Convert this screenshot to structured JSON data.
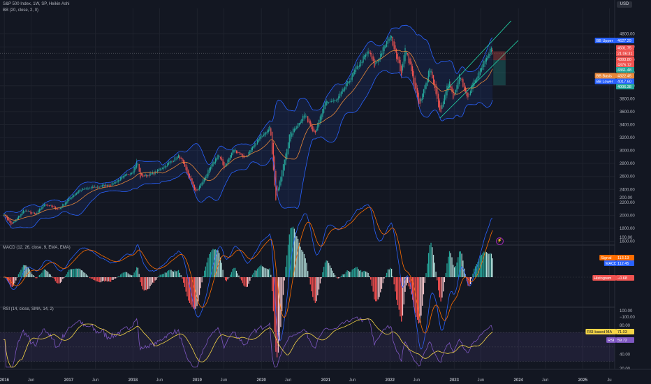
{
  "header": {
    "symbol": "S&P 500 Index, 1W, SP, Heikin Ashi",
    "bb_legend": "BB (20, close, 2, 0)",
    "currency": "USD"
  },
  "macd_legend": "MACD (12, 26, close, 9, EMA, EMA)",
  "rsi_legend": "RSI (14, close, SMA, 14, 2)",
  "colors": {
    "background": "#131722",
    "up": "#26a69a",
    "down": "#ef5350",
    "bb_basis": "#e8883a",
    "bb_band": "#2962ff",
    "channel": "#22d3a6",
    "macd_line": "#2962ff",
    "signal_line": "#ff6d00",
    "rsi_line": "#7e57c2",
    "rsi_ma": "#f5d547"
  },
  "price_labels": [
    {
      "name": "bb-upper",
      "tag": "BB Upper",
      "value": "4627.29",
      "bg": "#2962ff"
    },
    {
      "name": "last-price",
      "tag": "",
      "value": "4501.75",
      "bg": "#ef5350"
    },
    {
      "name": "countdown",
      "tag": "",
      "value": "21:06:31",
      "bg": "#ef5350"
    },
    {
      "name": "hl-high",
      "tag": "",
      "value": "4393.80",
      "bg": "#ef5350"
    },
    {
      "name": "hl-open",
      "tag": "",
      "value": "4376.12",
      "bg": "#ef5350"
    },
    {
      "name": "hl-low",
      "tag": "",
      "value": "4361.48",
      "bg": "#26a69a"
    },
    {
      "name": "bb-basis",
      "tag": "BB Basis",
      "value": "4322.45",
      "bg": "#e8883a"
    },
    {
      "name": "bb-lower",
      "tag": "BB Lower",
      "value": "4017.60",
      "bg": "#2962ff"
    },
    {
      "name": "hl-close",
      "tag": "",
      "value": "4006.38",
      "bg": "#26a69a"
    }
  ],
  "macd_labels": [
    {
      "name": "signal",
      "tag": "Signal",
      "value": "113.13",
      "bg": "#ff6d00"
    },
    {
      "name": "macd",
      "tag": "MACD",
      "value": "112.45",
      "bg": "#2962ff"
    },
    {
      "name": "histogram",
      "tag": "Histogram",
      "value": "−0.68",
      "bg": "#ef5350"
    }
  ],
  "rsi_labels": [
    {
      "name": "rsi-ma",
      "tag": "RSI-based MA",
      "value": "71.03",
      "bg": "#f5d547"
    },
    {
      "name": "rsi",
      "tag": "RSI",
      "value": "59.72",
      "bg": "#7e57c2"
    }
  ],
  "chart_data": [
    {
      "type": "candlestick",
      "title": "S&P 500 Index, 1W, SP, Heikin Ashi",
      "ylim": [
        1500,
        5000
      ],
      "y_ticks": [
        "4800.00",
        "4600.00",
        "4400.00",
        "4200.00",
        "4000.00",
        "3800.00",
        "3600.00",
        "3400.00",
        "3200.00",
        "3000.00",
        "2800.00",
        "2600.00",
        "2400.00",
        "2200.00",
        "2000.00",
        "1800.00",
        "1600.00"
      ],
      "price_anchors": [
        [
          "2015-12-28",
          2020
        ],
        [
          "2016-02-11",
          1850
        ],
        [
          "2016-04-20",
          2080
        ],
        [
          "2016-06-27",
          2010
        ],
        [
          "2016-08-15",
          2180
        ],
        [
          "2016-11-04",
          2090
        ],
        [
          "2016-12-30",
          2250
        ],
        [
          "2017-03-01",
          2390
        ],
        [
          "2017-06-15",
          2440
        ],
        [
          "2017-09-01",
          2480
        ],
        [
          "2017-12-29",
          2680
        ],
        [
          "2018-01-26",
          2850
        ],
        [
          "2018-02-09",
          2590
        ],
        [
          "2018-05-01",
          2650
        ],
        [
          "2018-09-20",
          2920
        ],
        [
          "2018-12-24",
          2350
        ],
        [
          "2019-04-30",
          2940
        ],
        [
          "2019-06-03",
          2740
        ],
        [
          "2019-07-26",
          3020
        ],
        [
          "2019-10-02",
          2890
        ],
        [
          "2019-12-31",
          3230
        ],
        [
          "2020-02-19",
          3380
        ],
        [
          "2020-03-23",
          2230
        ],
        [
          "2020-06-08",
          3230
        ],
        [
          "2020-09-02",
          3560
        ],
        [
          "2020-10-30",
          3270
        ],
        [
          "2020-12-31",
          3750
        ],
        [
          "2021-03-04",
          3770
        ],
        [
          "2021-06-30",
          4300
        ],
        [
          "2021-09-02",
          4540
        ],
        [
          "2021-10-04",
          4300
        ],
        [
          "2021-12-31",
          4770
        ],
        [
          "2022-01-03",
          4796
        ],
        [
          "2022-03-08",
          4170
        ],
        [
          "2022-03-29",
          4630
        ],
        [
          "2022-06-16",
          3670
        ],
        [
          "2022-08-16",
          4300
        ],
        [
          "2022-10-12",
          3570
        ],
        [
          "2022-12-01",
          4080
        ],
        [
          "2022-12-28",
          3780
        ],
        [
          "2023-02-02",
          4180
        ],
        [
          "2023-03-13",
          3810
        ],
        [
          "2023-06-30",
          4450
        ],
        [
          "2023-07-31",
          4590
        ],
        [
          "2023-08-11",
          4460
        ]
      ],
      "series": [
        {
          "name": "BB Upper",
          "last": 4627.29
        },
        {
          "name": "BB Basis",
          "last": 4322.45
        },
        {
          "name": "BB Lower",
          "last": 4017.6
        }
      ],
      "annotations": [
        "rising trend channel 2022-10 to 2023-08",
        "short position box"
      ]
    },
    {
      "type": "bar",
      "title": "MACD (12, 26, close, 9, EMA, EMA)",
      "ylim": [
        -200,
        200
      ],
      "y_ticks": [
        "200.00",
        "100.00",
        "0.00",
        "−100.00"
      ],
      "series": [
        {
          "name": "Signal",
          "last": 113.13
        },
        {
          "name": "MACD",
          "last": 112.45
        },
        {
          "name": "Histogram",
          "last": -0.68
        }
      ]
    },
    {
      "type": "line",
      "title": "RSI (14, close, SMA, 14, 2)",
      "ylim": [
        20,
        100
      ],
      "y_ticks": [
        "100.00",
        "80.00",
        "60.00",
        "40.00",
        "20.00"
      ],
      "bands": [
        30,
        50,
        70
      ],
      "series": [
        {
          "name": "RSI-based MA",
          "last": 71.03
        },
        {
          "name": "RSI",
          "last": 59.72
        }
      ]
    }
  ],
  "time_axis": {
    "ticks": [
      {
        "label": "2016",
        "date": "2016-01-01"
      },
      {
        "label": "Jun",
        "date": "2016-06-01"
      },
      {
        "label": "2017",
        "date": "2017-01-01"
      },
      {
        "label": "Jun",
        "date": "2017-06-01"
      },
      {
        "label": "2018",
        "date": "2018-01-01"
      },
      {
        "label": "Jun",
        "date": "2018-06-01"
      },
      {
        "label": "2019",
        "date": "2019-01-01"
      },
      {
        "label": "Jun",
        "date": "2019-06-01"
      },
      {
        "label": "2020",
        "date": "2020-01-01"
      },
      {
        "label": "Jun",
        "date": "2020-06-01"
      },
      {
        "label": "2021",
        "date": "2021-01-01"
      },
      {
        "label": "Jun",
        "date": "2021-06-01"
      },
      {
        "label": "2022",
        "date": "2022-01-01"
      },
      {
        "label": "Jun",
        "date": "2022-06-01"
      },
      {
        "label": "2023",
        "date": "2023-01-01"
      },
      {
        "label": "Jun",
        "date": "2023-06-01"
      },
      {
        "label": "2024",
        "date": "2024-01-01"
      },
      {
        "label": "Jun",
        "date": "2024-06-01"
      },
      {
        "label": "2025",
        "date": "2025-01-01"
      },
      {
        "label": "Ju",
        "date": "2025-06-01"
      }
    ]
  }
}
